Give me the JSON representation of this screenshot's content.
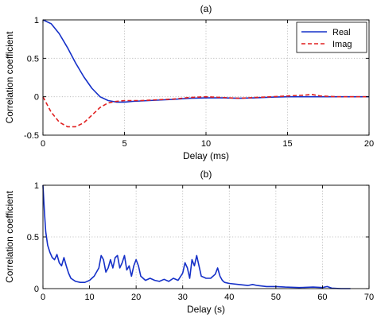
{
  "chart_data": [
    {
      "type": "line",
      "title": "(a)",
      "xlabel": "Delay (ms)",
      "ylabel": "Correlation coefficient",
      "xlim": [
        0,
        20
      ],
      "ylim": [
        -0.5,
        1
      ],
      "xticks": [
        0,
        5,
        10,
        15,
        20
      ],
      "yticks": [
        -0.5,
        0,
        0.5,
        1
      ],
      "xtick_labels": [
        "0",
        "5",
        "10",
        "15",
        "20"
      ],
      "ytick_labels": [
        "-0.5",
        "0",
        "0.5",
        "1"
      ],
      "grid": true,
      "legend_position": "top-right",
      "series": [
        {
          "name": "Real",
          "color": "#1530c8",
          "style": "solid",
          "x": [
            0,
            0.5,
            1,
            1.5,
            2,
            2.5,
            3,
            3.5,
            4,
            4.5,
            5,
            5.5,
            6,
            7,
            8,
            9,
            10,
            11,
            12,
            13,
            14,
            15,
            16,
            17,
            18,
            19,
            20
          ],
          "y": [
            1.0,
            0.95,
            0.82,
            0.64,
            0.44,
            0.26,
            0.11,
            0.0,
            -0.05,
            -0.07,
            -0.07,
            -0.06,
            -0.055,
            -0.045,
            -0.035,
            -0.02,
            -0.015,
            -0.015,
            -0.02,
            -0.015,
            -0.005,
            0.0,
            0.0,
            0.0,
            0.0,
            0.0,
            0.0
          ]
        },
        {
          "name": "Imag",
          "color": "#e02020",
          "style": "dashed",
          "x": [
            0,
            0.5,
            1,
            1.5,
            2,
            2.5,
            3,
            3.5,
            4,
            4.5,
            5,
            5.5,
            6,
            7,
            8,
            9,
            10,
            11,
            12,
            13,
            14,
            15,
            16,
            16.5,
            17,
            18,
            19,
            20
          ],
          "y": [
            0.0,
            -0.2,
            -0.33,
            -0.39,
            -0.39,
            -0.34,
            -0.24,
            -0.14,
            -0.08,
            -0.06,
            -0.05,
            -0.05,
            -0.05,
            -0.04,
            -0.03,
            -0.01,
            0.0,
            -0.01,
            -0.02,
            -0.01,
            0.0,
            0.01,
            0.02,
            0.03,
            0.01,
            0.0,
            0.0,
            0.0
          ]
        }
      ]
    },
    {
      "type": "line",
      "title": "(b)",
      "xlabel": "Delay (s)",
      "ylabel": "Correlation  coefficient",
      "xlim": [
        0,
        70
      ],
      "ylim": [
        0,
        1
      ],
      "xticks": [
        0,
        10,
        20,
        30,
        40,
        50,
        60,
        70
      ],
      "yticks": [
        0,
        0.5,
        1
      ],
      "xtick_labels": [
        "0",
        "10",
        "20",
        "30",
        "40",
        "50",
        "60",
        "70"
      ],
      "ytick_labels": [
        "0",
        "0.5",
        "1"
      ],
      "grid": true,
      "series": [
        {
          "color": "#1530c8",
          "style": "solid",
          "x": [
            0,
            0.3,
            0.6,
            1,
            1.5,
            2,
            2.5,
            3,
            3.5,
            4,
            4.5,
            5,
            5.5,
            6,
            7,
            8,
            9,
            10,
            11,
            12,
            12.5,
            13,
            13.5,
            14,
            14.5,
            15,
            15.5,
            16,
            16.5,
            17,
            17.5,
            18,
            18.5,
            19,
            19.5,
            20,
            20.5,
            21,
            22,
            23,
            24,
            25,
            26,
            27,
            28,
            29,
            30,
            30.5,
            31,
            31.5,
            32,
            32.5,
            33,
            33.5,
            34,
            35,
            36,
            37,
            37.5,
            38,
            38.5,
            39,
            40,
            42,
            44,
            45,
            46,
            48,
            50,
            52,
            55,
            58,
            60,
            61,
            62,
            64,
            66
          ],
          "y": [
            1.0,
            0.75,
            0.55,
            0.42,
            0.35,
            0.3,
            0.28,
            0.33,
            0.25,
            0.22,
            0.3,
            0.22,
            0.15,
            0.1,
            0.07,
            0.06,
            0.06,
            0.08,
            0.12,
            0.2,
            0.32,
            0.28,
            0.16,
            0.2,
            0.28,
            0.2,
            0.3,
            0.32,
            0.2,
            0.25,
            0.32,
            0.18,
            0.22,
            0.12,
            0.22,
            0.28,
            0.22,
            0.12,
            0.08,
            0.1,
            0.08,
            0.07,
            0.09,
            0.07,
            0.1,
            0.08,
            0.15,
            0.25,
            0.2,
            0.1,
            0.28,
            0.22,
            0.32,
            0.22,
            0.12,
            0.1,
            0.1,
            0.14,
            0.2,
            0.12,
            0.08,
            0.06,
            0.05,
            0.04,
            0.03,
            0.04,
            0.03,
            0.02,
            0.02,
            0.015,
            0.01,
            0.015,
            0.01,
            0.02,
            0.005,
            0.0,
            0.0
          ]
        }
      ]
    }
  ]
}
